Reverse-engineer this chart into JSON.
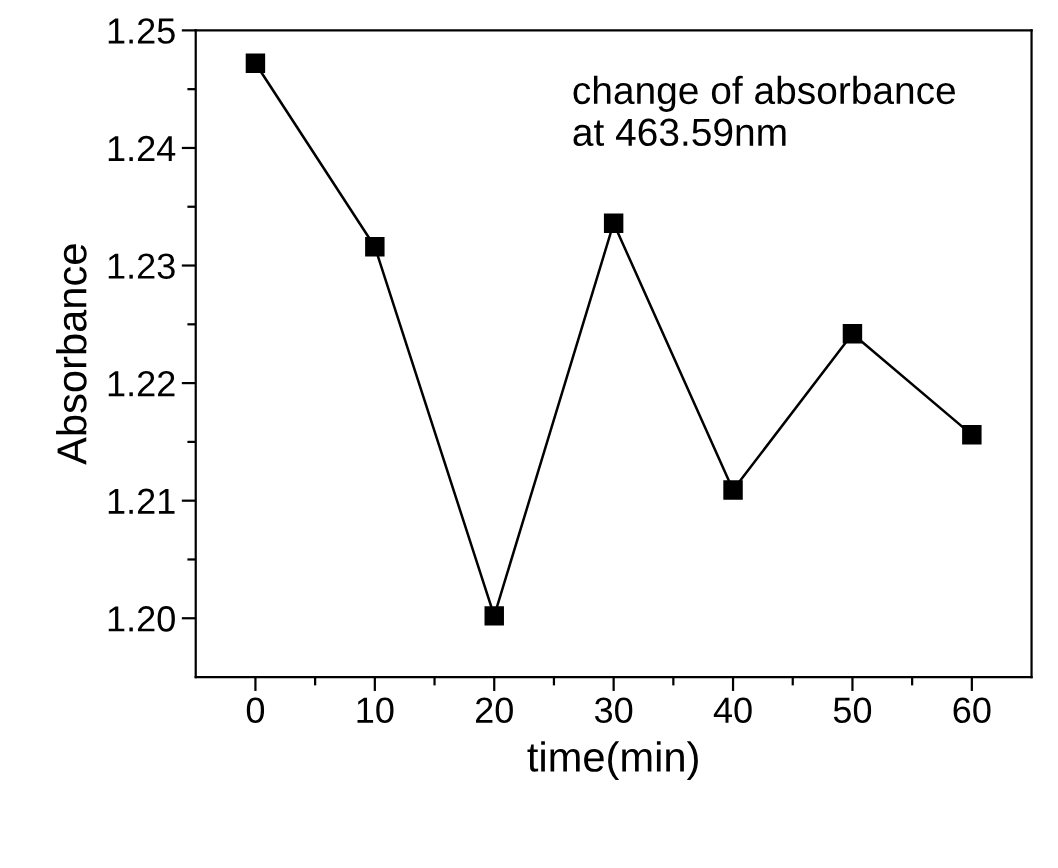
{
  "chart_data": {
    "type": "line",
    "xlabel": "time(min)",
    "ylabel": "Absorbance",
    "annotations": [
      "change of absorbance\nat 463.59nm"
    ],
    "x": [
      0,
      10,
      20,
      30,
      40,
      50,
      60
    ],
    "series": [
      {
        "color": "#000000",
        "values": [
          1.2472,
          1.2316,
          1.2002,
          1.2336,
          1.2109,
          1.2242,
          1.2156
        ]
      }
    ],
    "marker": "square",
    "line_style": "solid",
    "grid": false,
    "legend": false,
    "xlim": [
      -5,
      65
    ],
    "ylim": [
      1.195,
      1.25
    ],
    "xticks": [
      0,
      {
        "value": 5,
        "label": null
      },
      10,
      {
        "value": 15,
        "label": null
      },
      20,
      {
        "value": 25,
        "label": null
      },
      30,
      {
        "value": 35,
        "label": null
      },
      40,
      {
        "value": 45,
        "label": null
      },
      50,
      {
        "value": 55,
        "label": null
      },
      60
    ],
    "yticks": [
      {
        "value": 1.2,
        "label": "1.20"
      },
      {
        "value": 1.205,
        "label": null
      },
      1.21,
      {
        "value": 1.215,
        "label": null
      },
      1.22,
      {
        "value": 1.225,
        "label": null
      },
      1.23,
      {
        "value": 1.235,
        "label": null
      },
      1.24,
      {
        "value": 1.245,
        "label": null
      },
      1.25
    ]
  }
}
